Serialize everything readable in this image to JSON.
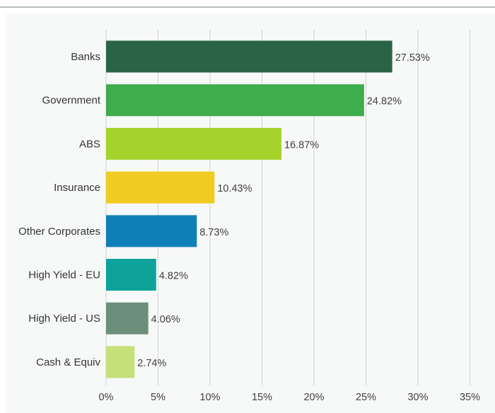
{
  "chart_data": {
    "type": "bar",
    "orientation": "horizontal",
    "categories": [
      "Banks",
      "Government",
      "ABS",
      "Insurance",
      "Other Corporates",
      "High Yield - EU",
      "High Yield - US",
      "Cash & Equiv"
    ],
    "values": [
      27.53,
      24.82,
      16.87,
      10.43,
      8.73,
      4.82,
      4.06,
      2.74
    ],
    "value_labels": [
      "27.53%",
      "24.82%",
      "16.87%",
      "10.43%",
      "8.73%",
      "4.82%",
      "4.06%",
      "2.74%"
    ],
    "colors": [
      "#2a6346",
      "#3ead4d",
      "#a6d32b",
      "#f0cb21",
      "#0f7fb8",
      "#0ea39a",
      "#6b8f7a",
      "#c6e07a"
    ],
    "x_ticks": [
      "0%",
      "5%",
      "10%",
      "15%",
      "20%",
      "25%",
      "30%",
      "35%"
    ],
    "xlim": [
      0,
      35
    ],
    "grid": true,
    "title": "",
    "xlabel": "",
    "ylabel": ""
  }
}
